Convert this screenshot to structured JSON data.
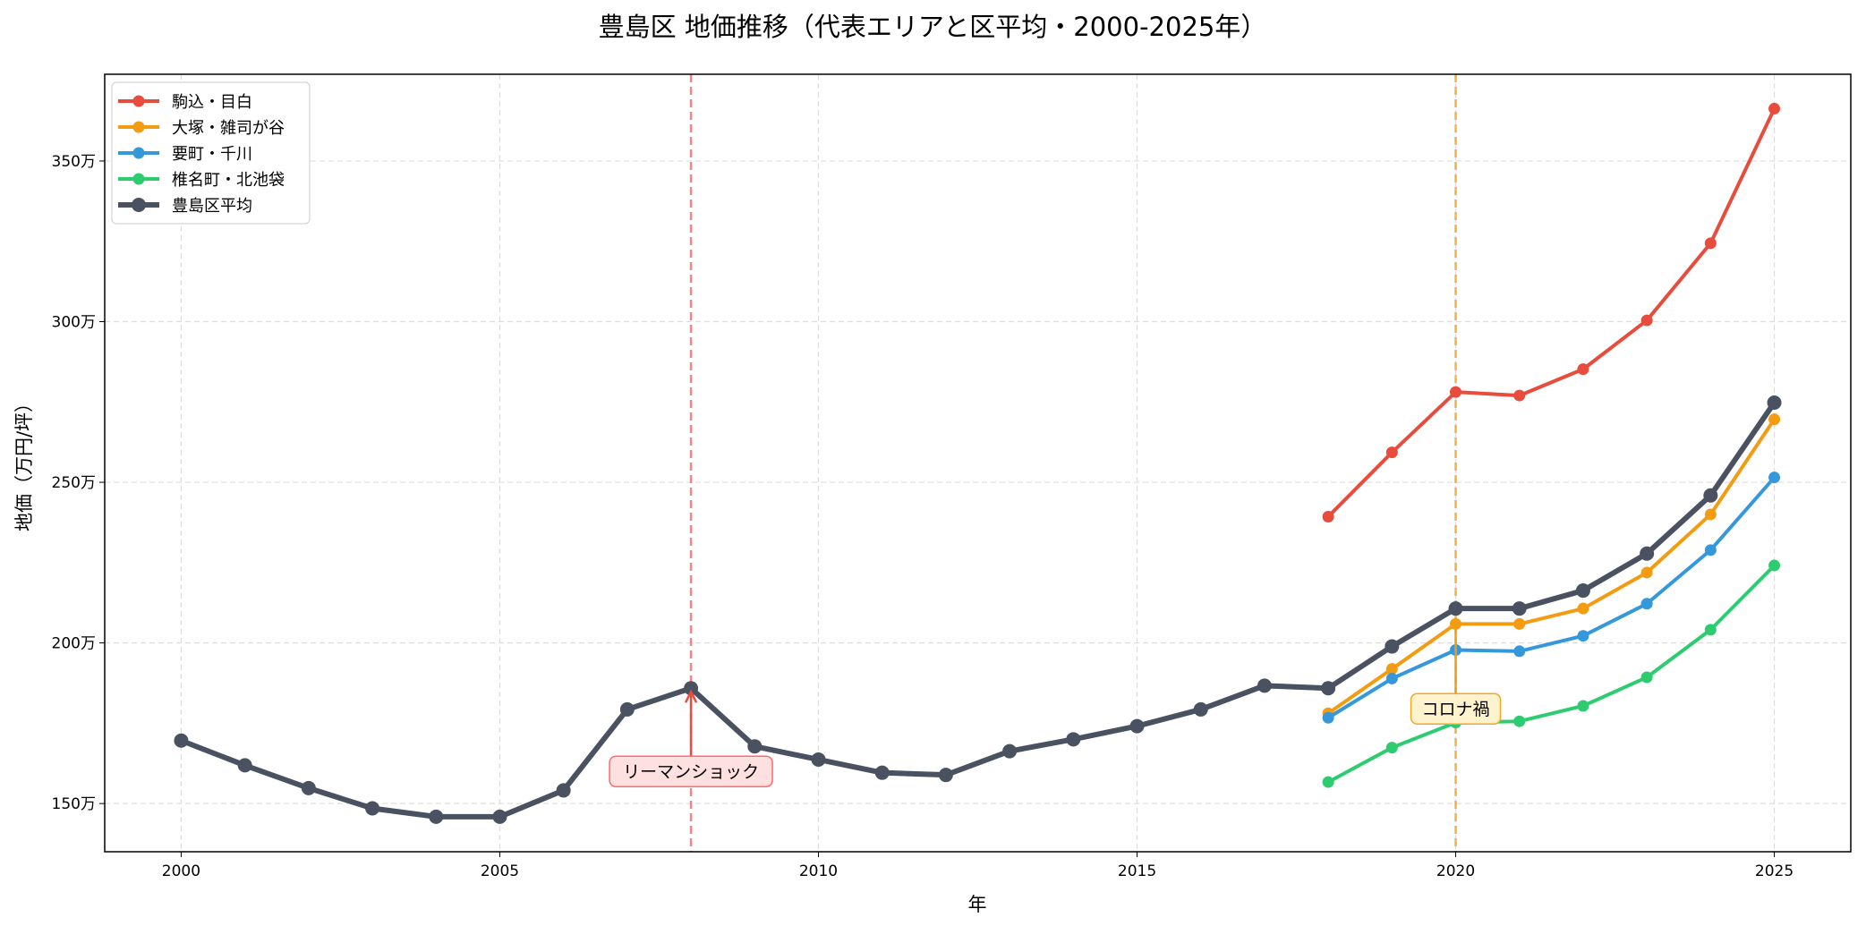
{
  "chart_data": {
    "type": "line",
    "title": "豊島区 地価推移（代表エリアと区平均・2000-2025年）",
    "xlabel": "年",
    "ylabel": "地価（万円/坪）",
    "xlim": [
      1998.8,
      2026.2
    ],
    "ylim": [
      135,
      377
    ],
    "xticks": [
      2000,
      2005,
      2010,
      2015,
      2020,
      2025
    ],
    "xtick_labels": [
      "2000",
      "2005",
      "2010",
      "2015",
      "2020",
      "2025"
    ],
    "yticks": [
      150,
      200,
      250,
      300,
      350
    ],
    "ytick_labels": [
      "150万",
      "200万",
      "250万",
      "300万",
      "350万"
    ],
    "grid": true,
    "legend_position": "top-left",
    "series": [
      {
        "name": "駒込・目白",
        "color": "#e74c3c",
        "x": [
          2018,
          2019,
          2020,
          2021,
          2022,
          2023,
          2024,
          2025
        ],
        "values": [
          239.3,
          259.3,
          278.1,
          277.0,
          285.2,
          300.4,
          324.4,
          366.3
        ]
      },
      {
        "name": "大塚・雑司が谷",
        "color": "#f39c12",
        "x": [
          2018,
          2019,
          2020,
          2021,
          2022,
          2023,
          2024,
          2025
        ],
        "values": [
          178.1,
          191.9,
          205.9,
          205.9,
          210.7,
          221.9,
          240.0,
          269.6
        ]
      },
      {
        "name": "要町・千川",
        "color": "#3498db",
        "x": [
          2018,
          2019,
          2020,
          2021,
          2022,
          2023,
          2024,
          2025
        ],
        "values": [
          176.7,
          188.9,
          197.8,
          197.4,
          202.2,
          212.2,
          228.9,
          251.5
        ]
      },
      {
        "name": "椎名町・北池袋",
        "color": "#2ecc71",
        "x": [
          2018,
          2019,
          2020,
          2021,
          2022,
          2023,
          2024,
          2025
        ],
        "values": [
          156.7,
          167.4,
          175.2,
          175.6,
          180.4,
          189.3,
          204.1,
          224.1
        ]
      },
      {
        "name": "豊島区平均",
        "color": "#4a5160",
        "x": [
          2000,
          2001,
          2002,
          2003,
          2004,
          2005,
          2006,
          2007,
          2008,
          2009,
          2010,
          2011,
          2012,
          2013,
          2014,
          2015,
          2016,
          2017,
          2018,
          2019,
          2020,
          2021,
          2022,
          2023,
          2024,
          2025
        ],
        "values": [
          169.6,
          161.9,
          154.8,
          148.5,
          145.9,
          145.9,
          154.1,
          179.3,
          185.9,
          167.8,
          163.7,
          159.6,
          158.9,
          166.3,
          170.0,
          174.1,
          179.3,
          186.7,
          185.9,
          198.9,
          210.7,
          210.7,
          216.3,
          227.8,
          245.9,
          274.8
        ]
      }
    ],
    "annotations": [
      {
        "text": "リーマンショック",
        "x": 2008,
        "y": 185.9,
        "text_x": 2008,
        "text_y": 160,
        "line_color": "#ff6b6b",
        "box_color": "#ffe0e0"
      },
      {
        "text": "コロナ禍",
        "x": 2020,
        "y": 205.9,
        "text_x": 2020,
        "text_y": 179.5,
        "line_color": "#f5a623",
        "box_color": "#fff3cd"
      }
    ]
  }
}
